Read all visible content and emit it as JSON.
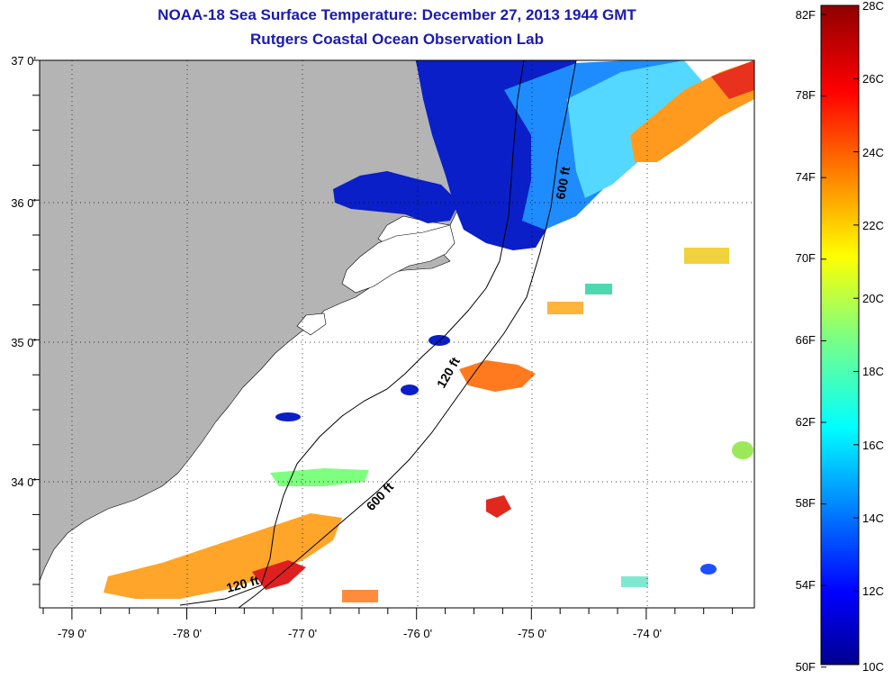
{
  "title": "NOAA-18 Sea Surface Temperature:  December 27, 2013 1944 GMT",
  "subtitle": "Rutgers Coastal Ocean Observation Lab",
  "axes": {
    "lon_labels": [
      "-79 0'",
      "-78 0'",
      "-77 0'",
      "-76 0'",
      "-75 0'",
      "-74 0'"
    ],
    "lat_labels": [
      "37 0'",
      "36 0'",
      "35 0'",
      "34 0'"
    ]
  },
  "contour_labels": {
    "c600_north": "600 ft",
    "c120_mid": "120 ft",
    "c600_south": "600 ft",
    "c120_south": "120 ft"
  },
  "colorbar": {
    "fahrenheit": [
      "82F",
      "78F",
      "74F",
      "70F",
      "66F",
      "62F",
      "58F",
      "54F",
      "50F"
    ],
    "celsius": [
      "28C",
      "26C",
      "24C",
      "22C",
      "20C",
      "18C",
      "16C",
      "14C",
      "12C",
      "10C"
    ]
  },
  "colors": {
    "land": "#b4b4b4",
    "title": "#1a1ab0",
    "cold": "#00008f",
    "warm": "#8f0000"
  }
}
